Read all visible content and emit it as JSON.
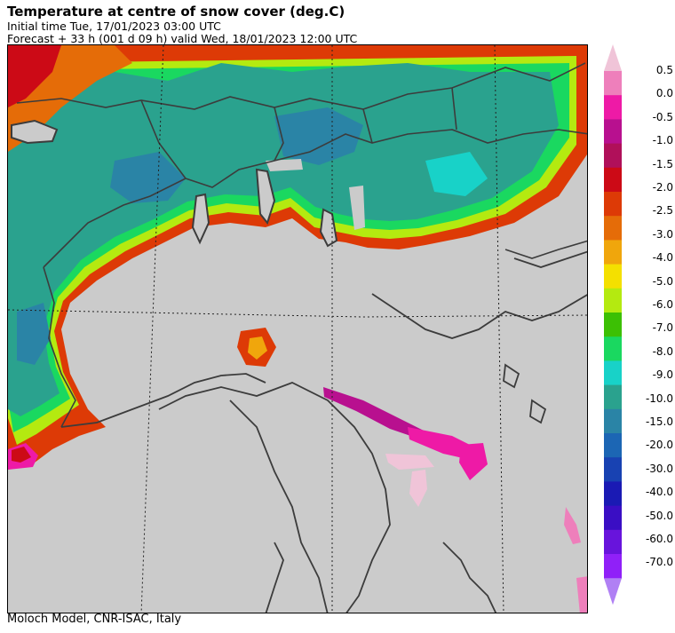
{
  "header": {
    "title": "Temperature at centre of snow cover (deg.C)",
    "initial_time": "Initial time  Tue, 17/01/2023  03:00 UTC",
    "forecast": "Forecast  +  33 h  (001 d 09 h)  valid Wed, 18/01/2023 12:00 UTC"
  },
  "footer": "Moloch Model, CNR-ISAC, Italy",
  "legend": {
    "labels": [
      "0.5",
      "0.0",
      "-0.5",
      "-1.0",
      "-1.5",
      "-2.0",
      "-2.5",
      "-3.0",
      "-4.0",
      "-5.0",
      "-6.0",
      "-7.0",
      "-8.0",
      "-9.0",
      "-10.0",
      "-15.0",
      "-20.0",
      "-30.0",
      "-40.0",
      "-50.0",
      "-60.0",
      "-70.0"
    ],
    "colors": [
      "#f0c4d8",
      "#ee7fbb",
      "#ee1aa6",
      "#b8108f",
      "#b0105a",
      "#cc0a16",
      "#dd3a06",
      "#e56c08",
      "#f0a60c",
      "#f4e000",
      "#b4ea10",
      "#3cc004",
      "#1ad860",
      "#18d2c8",
      "#2aa28e",
      "#2a84a6",
      "#1c66b4",
      "#1842b2",
      "#1a1ab4",
      "#3a0ec4",
      "#6814dc",
      "#9020f8"
    ],
    "top_color": "#f0c4d8",
    "bottom_color": "#b080f4"
  },
  "colors": {
    "no_snow": "#cbcbcb",
    "border": "#3c3c3c"
  }
}
